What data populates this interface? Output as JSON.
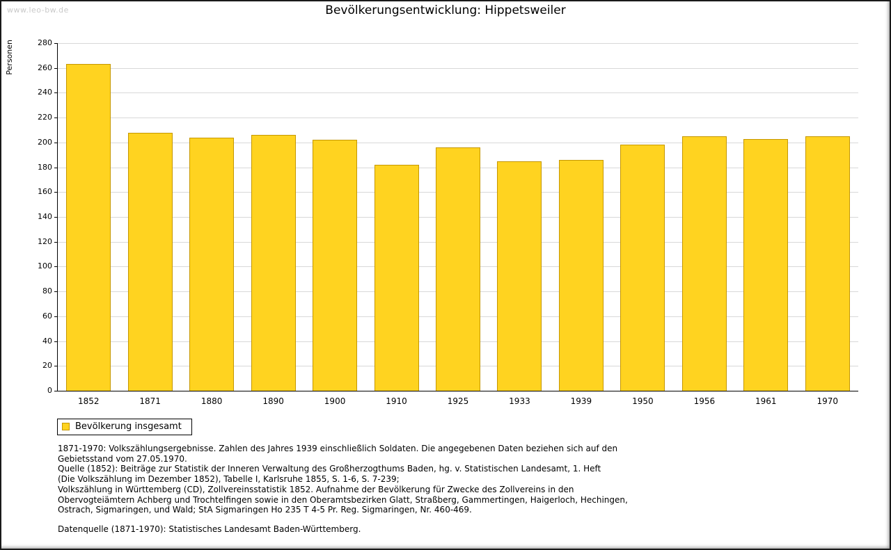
{
  "page": {
    "watermark": "www.leo-bw.de"
  },
  "chart_data": {
    "type": "bar",
    "title": "Bevölkerungsentwicklung: Hippetsweiler",
    "xlabel": "",
    "ylabel": "Personen",
    "ylim": [
      0,
      280
    ],
    "ytick_step": 20,
    "grid": true,
    "bar_color": "#FFD320",
    "bar_border_color": "#C59700",
    "categories": [
      "1852",
      "1871",
      "1880",
      "1890",
      "1900",
      "1910",
      "1925",
      "1933",
      "1939",
      "1950",
      "1956",
      "1961",
      "1970"
    ],
    "values": [
      263,
      208,
      204,
      206,
      202,
      182,
      196,
      185,
      186,
      198,
      205,
      203,
      205
    ],
    "legend": {
      "position": "bottom-left",
      "label": "Bevölkerung insgesamt"
    }
  },
  "notes": {
    "lines": [
      "1871-1970: Volkszählungsergebnisse. Zahlen des Jahres 1939 einschließlich Soldaten. Die angegebenen Daten beziehen sich auf den",
      "Gebietsstand vom 27.05.1970.",
      "Quelle (1852): Beiträge zur Statistik der Inneren Verwaltung des Großherzogthums Baden, hg. v. Statistischen Landesamt, 1. Heft",
      "(Die Volkszählung im Dezember 1852), Tabelle I, Karlsruhe 1855, S. 1-6, S. 7-239;",
      "Volkszählung in Württemberg (CD), Zollvereinsstatistik 1852. Aufnahme der Bevölkerung für Zwecke des Zollvereins in den",
      "Obervogteiämtern Achberg und Trochtelfingen sowie in den Oberamtsbezirken Glatt, Straßberg, Gammertingen, Haigerloch, Hechingen,",
      "Ostrach, Sigmaringen, und Wald; StA Sigmaringen Ho 235 T 4-5 Pr. Reg. Sigmaringen, Nr. 460-469."
    ],
    "datasource": "Datenquelle (1871-1970): Statistisches Landesamt Baden-Württemberg."
  }
}
